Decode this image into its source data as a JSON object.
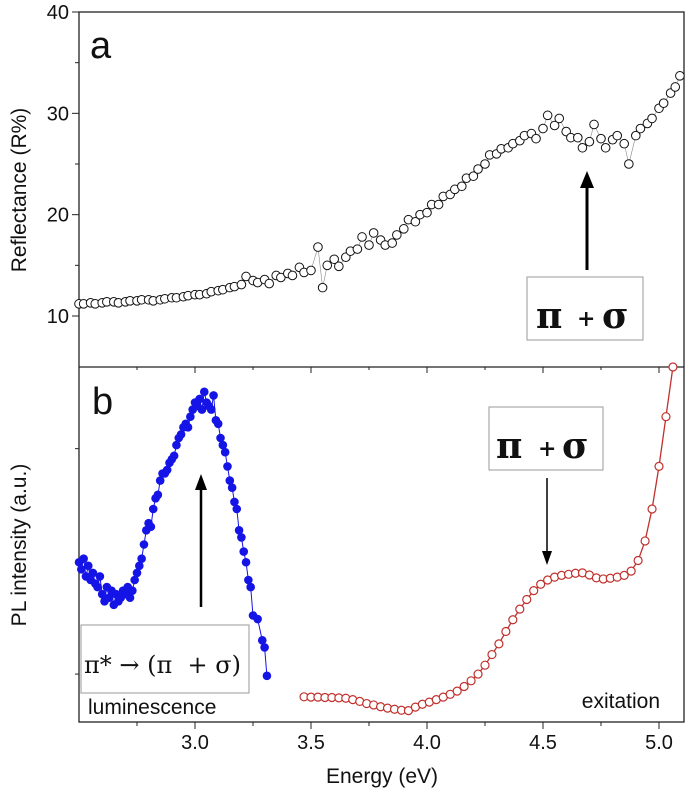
{
  "chart_data": [
    {
      "panel_label": "a",
      "type": "scatter",
      "ylabel": "Reflectance (R%)",
      "xlabel": "Energy (eV)",
      "xlim": [
        2.5,
        5.1
      ],
      "ylim": [
        5,
        40
      ],
      "yticks": [
        10,
        20,
        30,
        40
      ],
      "grid": false,
      "marker": "open-circle",
      "color": "#111111",
      "x": [
        2.5,
        2.52,
        2.55,
        2.57,
        2.6,
        2.62,
        2.65,
        2.67,
        2.7,
        2.72,
        2.75,
        2.77,
        2.8,
        2.82,
        2.85,
        2.87,
        2.9,
        2.92,
        2.95,
        2.97,
        3.0,
        3.02,
        3.05,
        3.07,
        3.1,
        3.12,
        3.15,
        3.17,
        3.2,
        3.22,
        3.25,
        3.27,
        3.3,
        3.32,
        3.35,
        3.37,
        3.4,
        3.42,
        3.45,
        3.47,
        3.5,
        3.53,
        3.55,
        3.57,
        3.6,
        3.62,
        3.65,
        3.67,
        3.7,
        3.72,
        3.75,
        3.77,
        3.8,
        3.82,
        3.85,
        3.87,
        3.9,
        3.92,
        3.95,
        3.97,
        4.0,
        4.02,
        4.05,
        4.07,
        4.1,
        4.12,
        4.15,
        4.17,
        4.2,
        4.22,
        4.25,
        4.27,
        4.3,
        4.32,
        4.35,
        4.37,
        4.4,
        4.42,
        4.45,
        4.47,
        4.5,
        4.52,
        4.55,
        4.57,
        4.6,
        4.62,
        4.65,
        4.67,
        4.7,
        4.72,
        4.75,
        4.77,
        4.8,
        4.82,
        4.85,
        4.87,
        4.9,
        4.92,
        4.95,
        4.97,
        5.0,
        5.02,
        5.05,
        5.07,
        5.09
      ],
      "y": [
        11.2,
        11.2,
        11.3,
        11.2,
        11.3,
        11.4,
        11.4,
        11.3,
        11.4,
        11.5,
        11.5,
        11.6,
        11.6,
        11.5,
        11.6,
        11.7,
        11.8,
        11.8,
        11.9,
        12.0,
        12.1,
        12.1,
        12.2,
        12.4,
        12.5,
        12.6,
        12.8,
        12.9,
        13.1,
        13.9,
        13.5,
        13.3,
        13.6,
        13.2,
        14.0,
        13.8,
        14.2,
        14.0,
        14.8,
        14.3,
        14.5,
        16.8,
        12.8,
        15.0,
        15.6,
        14.9,
        15.8,
        16.4,
        16.6,
        17.8,
        17.0,
        18.2,
        17.5,
        17.0,
        17.2,
        18.0,
        18.6,
        19.5,
        19.3,
        20.0,
        20.2,
        21.0,
        21.0,
        21.8,
        22.0,
        22.5,
        22.8,
        23.6,
        23.8,
        24.5,
        25.0,
        25.9,
        26.0,
        26.5,
        26.6,
        27.0,
        27.3,
        27.8,
        28.0,
        27.5,
        28.5,
        29.8,
        28.8,
        29.5,
        28.2,
        27.6,
        27.6,
        26.6,
        27.2,
        28.9,
        27.5,
        26.6,
        27.4,
        27.8,
        27.0,
        25.0,
        27.8,
        28.5,
        29.0,
        29.5,
        30.5,
        31.0,
        32.0,
        32.6,
        33.7
      ]
    },
    {
      "panel_label": "b",
      "type": "scatter",
      "ylabel": "PL intensity (a.u.)",
      "xlabel": "Energy (eV)",
      "xlim": [
        2.5,
        5.1
      ],
      "ylim": [
        0,
        100
      ],
      "xticks": [
        3.0,
        3.5,
        4.0,
        4.5,
        5.0
      ],
      "xtick_labels": [
        "3.0",
        "3.5",
        "4.0",
        "4.5",
        "5.0"
      ],
      "grid": false,
      "series": [
        {
          "name": "luminescence",
          "marker": "filled-circle",
          "color": "#1414e6",
          "x": [
            2.5,
            2.51,
            2.52,
            2.53,
            2.54,
            2.55,
            2.56,
            2.57,
            2.58,
            2.59,
            2.6,
            2.61,
            2.62,
            2.63,
            2.64,
            2.65,
            2.66,
            2.67,
            2.68,
            2.69,
            2.7,
            2.71,
            2.72,
            2.73,
            2.74,
            2.75,
            2.76,
            2.77,
            2.78,
            2.79,
            2.8,
            2.81,
            2.82,
            2.83,
            2.84,
            2.85,
            2.86,
            2.87,
            2.88,
            2.89,
            2.9,
            2.91,
            2.92,
            2.93,
            2.94,
            2.95,
            2.96,
            2.97,
            2.98,
            2.99,
            3.0,
            3.01,
            3.02,
            3.03,
            3.04,
            3.05,
            3.06,
            3.07,
            3.08,
            3.09,
            3.1,
            3.11,
            3.12,
            3.13,
            3.14,
            3.15,
            3.16,
            3.17,
            3.18,
            3.19,
            3.2,
            3.21,
            3.22,
            3.23,
            3.24,
            3.25,
            3.27,
            3.29,
            3.3,
            3.31
          ],
          "y": [
            45,
            43,
            46,
            41,
            44,
            40,
            42,
            39,
            38,
            41,
            36,
            34,
            38,
            35,
            37,
            33,
            36,
            34,
            35,
            37,
            36,
            38,
            35,
            37,
            40,
            42,
            44,
            46,
            50,
            54,
            56,
            55,
            60,
            63,
            64,
            68,
            70,
            70,
            71,
            73,
            74,
            75,
            78,
            80,
            81,
            83,
            84,
            83,
            86,
            88,
            90,
            89,
            91,
            88,
            93,
            90,
            89,
            88,
            92,
            85,
            84,
            80,
            78,
            76,
            72,
            68,
            66,
            62,
            60,
            54,
            52,
            48,
            45,
            40,
            38,
            30,
            29,
            23,
            21,
            13
          ]
        },
        {
          "name": "exitation",
          "marker": "open-circle",
          "color": "#c0302c",
          "x": [
            3.47,
            3.5,
            3.53,
            3.56,
            3.59,
            3.62,
            3.65,
            3.68,
            3.71,
            3.74,
            3.77,
            3.8,
            3.83,
            3.86,
            3.89,
            3.92,
            3.95,
            3.98,
            4.01,
            4.04,
            4.07,
            4.1,
            4.13,
            4.16,
            4.19,
            4.22,
            4.25,
            4.28,
            4.31,
            4.34,
            4.37,
            4.4,
            4.43,
            4.46,
            4.49,
            4.52,
            4.55,
            4.58,
            4.61,
            4.64,
            4.67,
            4.7,
            4.73,
            4.76,
            4.79,
            4.82,
            4.85,
            4.88,
            4.91,
            4.94,
            4.97,
            5.0,
            5.03,
            5.06
          ],
          "y": [
            7.1,
            7.0,
            7.0,
            6.9,
            6.9,
            6.8,
            6.7,
            6.3,
            5.8,
            5.2,
            4.8,
            4.3,
            3.9,
            3.6,
            3.3,
            3.2,
            4.2,
            5.0,
            5.6,
            6.3,
            7.0,
            7.8,
            8.7,
            10.0,
            11.6,
            13.5,
            16.0,
            19.0,
            22.0,
            25.5,
            28.8,
            31.8,
            34.5,
            37.0,
            38.8,
            40.0,
            40.8,
            41.3,
            41.6,
            41.9,
            42.0,
            41.4,
            40.6,
            40.3,
            40.5,
            40.8,
            41.3,
            42.5,
            45.5,
            51,
            60,
            72,
            86,
            100
          ]
        }
      ]
    }
  ],
  "annotations": {
    "a_label": "a",
    "b_label": "b",
    "a_box": {
      "pi": "π",
      "plus": "+",
      "sigma": "σ"
    },
    "b_box": {
      "pi": "π",
      "plus": "+",
      "sigma": "σ"
    },
    "lum_box": "π* → (π  + σ)",
    "luminescence": "luminescence",
    "exitation": "exitation"
  }
}
